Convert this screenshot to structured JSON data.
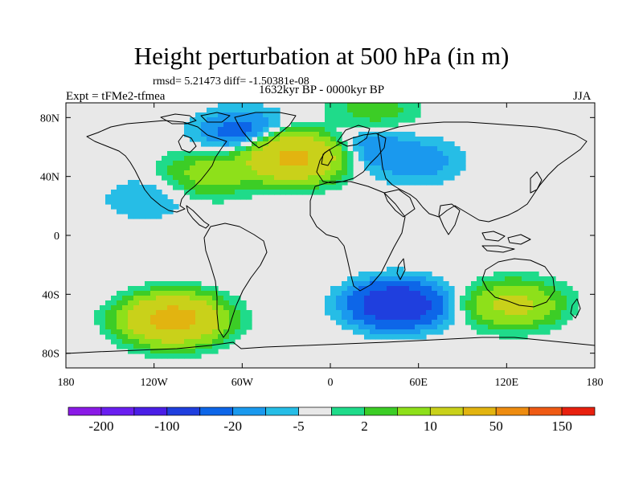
{
  "title": "Height perturbation at 500 hPa (in m)",
  "stats_line": "rmsd= 5.21473 diff= -1.50381e-08",
  "experiment_label": "Expt = tFMe2-tfmea",
  "period_label": "1632kyr BP - 0000kyr BP",
  "season_label": "JJA",
  "map": {
    "projection": "cylindrical-equidistant",
    "lon_range": [
      -180,
      180
    ],
    "lat_range": [
      -90,
      90
    ],
    "x_tick_labels": [
      "180",
      "120W",
      "60W",
      "0",
      "60E",
      "120E",
      "180"
    ],
    "y_tick_labels": [
      "80N",
      "40N",
      "0",
      "40S",
      "80S"
    ],
    "background_color": "#e8e8e8",
    "coastline_color": "#000000",
    "features": [
      {
        "lon": -25,
        "lat": 53,
        "value": 60
      },
      {
        "lon": -82,
        "lat": 42,
        "value": 15
      },
      {
        "lon": -107,
        "lat": -57,
        "value": 70
      },
      {
        "lon": 125,
        "lat": -47,
        "value": 25
      },
      {
        "lon": 45,
        "lat": -47,
        "value": -40
      },
      {
        "lon": -60,
        "lat": 70,
        "value": -15
      },
      {
        "lon": 60,
        "lat": 50,
        "value": -8
      },
      {
        "lon": 25,
        "lat": 60,
        "value": -8
      },
      {
        "lon": -125,
        "lat": 25,
        "value": -5
      },
      {
        "lon": 30,
        "lat": 85,
        "value": 8
      }
    ]
  },
  "colorbar": {
    "labels": [
      "-200",
      "-100",
      "-20",
      "-5",
      "2",
      "10",
      "50",
      "150"
    ],
    "colors": [
      "#8a1ae6",
      "#6a1ef0",
      "#4a1ee6",
      "#1f3fde",
      "#0d66e8",
      "#1a99ee",
      "#26bde6",
      "#e8e8e8",
      "#1fdb8a",
      "#3ccd26",
      "#8ee01a",
      "#c9d11a",
      "#e2b410",
      "#ee8c10",
      "#ef5a14",
      "#e8200e"
    ]
  }
}
